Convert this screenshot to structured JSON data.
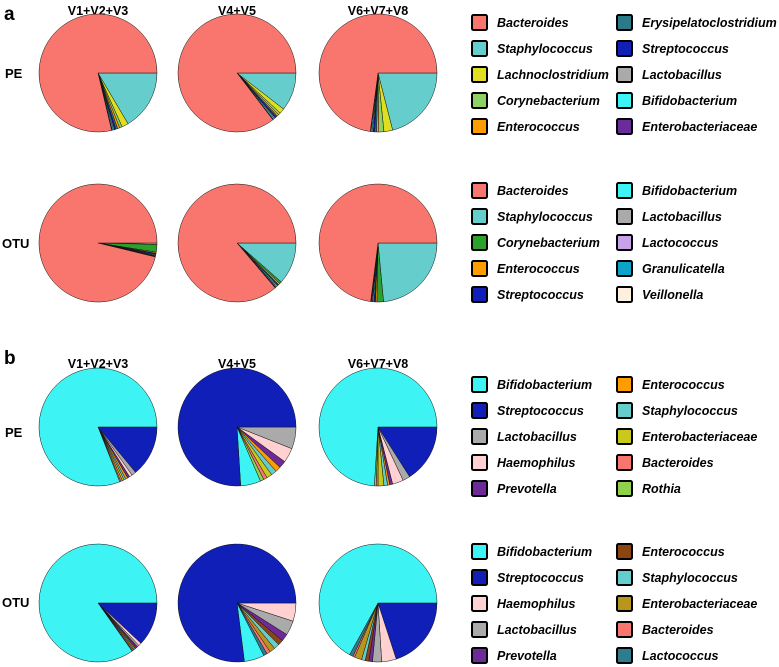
{
  "colors": {
    "Bacteroides": "#f8766d",
    "Staphylococcus": "#66cdcd",
    "Lachnoclostridium": "#dede22",
    "Corynebacterium": "#2ca02c",
    "Corynebacterium_light": "#8fd164",
    "Enterococcus": "#ff9d00",
    "Enterococcus_dark": "#8b4513",
    "Erysipelatoclostridium": "#2b7a8a",
    "Streptococcus": "#0f1fb8",
    "Lactobacillus": "#aaaaaa",
    "Bifidobacterium": "#3ef3f3",
    "Enterobacteriaceae": "#6a2c9a",
    "Enterobacteriaceae_b": "#c9c91c",
    "Enterobacteriaceae_b2": "#b8961c",
    "Lactococcus": "#c8a2e8",
    "Lactococcus_b": "#2e7d8f",
    "Granulicatella": "#0ba4c8",
    "Veillonella": "#fdf0e0",
    "Haemophilus": "#ffd1d1",
    "Prevotella": "#6f2a99",
    "Rothia": "#8fd14a",
    "bifido_light": "#9ef5f5"
  },
  "chart_data": [
    {
      "panel": "a",
      "type": "pie",
      "columns": [
        "V1+V2+V3",
        "V4+V5",
        "V6+V7+V8"
      ],
      "rows": [
        {
          "label": "PE",
          "legend": [
            "Bacteroides",
            "Staphylococcus",
            "Lachnoclostridium",
            "Corynebacterium",
            "Enterococcus",
            "Erysipelatoclostridium",
            "Streptococcus",
            "Lactobacillus",
            "Bifidobacterium",
            "Enterobacteriaceae"
          ],
          "legend_colors": [
            "#f8766d",
            "#66cdcd",
            "#dede22",
            "#8fd164",
            "#ff9d00",
            "#2b7a8a",
            "#0f1fb8",
            "#aaaaaa",
            "#3ef3f3",
            "#6a2c9a"
          ],
          "pies": [
            {
              "column": "V1+V2+V3",
              "slices": [
                {
                  "name": "Staphylococcus",
                  "value": 16.5
                },
                {
                  "name": "Lachnoclostridium",
                  "value": 1.8
                },
                {
                  "name": "Corynebacterium",
                  "value": 0.7
                },
                {
                  "name": "Enterococcus",
                  "value": 0.6
                },
                {
                  "name": "Erysipelatoclostridium",
                  "value": 0.5
                },
                {
                  "name": "Streptococcus",
                  "value": 0.4
                },
                {
                  "name": "Lactobacillus",
                  "value": 0.3
                },
                {
                  "name": "Bifidobacterium",
                  "value": 0.3
                },
                {
                  "name": "Enterobacteriaceae",
                  "value": 0.2
                },
                {
                  "name": "Bacteroides",
                  "value": 78.7
                }
              ]
            },
            {
              "column": "V4+V5",
              "slices": [
                {
                  "name": "Staphylococcus",
                  "value": 10.5
                },
                {
                  "name": "Lachnoclostridium",
                  "value": 1.4
                },
                {
                  "name": "Corynebacterium",
                  "value": 0.6
                },
                {
                  "name": "Enterococcus",
                  "value": 0.5
                },
                {
                  "name": "Erysipelatoclostridium",
                  "value": 0.4
                },
                {
                  "name": "Streptococcus",
                  "value": 0.4
                },
                {
                  "name": "Lactobacillus",
                  "value": 0.3
                },
                {
                  "name": "Bifidobacterium",
                  "value": 0.3
                },
                {
                  "name": "Enterobacteriaceae",
                  "value": 0.2
                },
                {
                  "name": "Bacteroides",
                  "value": 85.4
                }
              ]
            },
            {
              "column": "V6+V7+V8",
              "slices": [
                {
                  "name": "Staphylococcus",
                  "value": 21
                },
                {
                  "name": "Lachnoclostridium",
                  "value": 2.4
                },
                {
                  "name": "Corynebacterium",
                  "value": 1.4
                },
                {
                  "name": "Enterococcus",
                  "value": 0.6
                },
                {
                  "name": "Erysipelatoclostridium",
                  "value": 0.5
                },
                {
                  "name": "Streptococcus",
                  "value": 0.4
                },
                {
                  "name": "Lactobacillus",
                  "value": 0.3
                },
                {
                  "name": "Bifidobacterium",
                  "value": 0.3
                },
                {
                  "name": "Enterobacteriaceae",
                  "value": 0.2
                },
                {
                  "name": "Bacteroides",
                  "value": 72.9
                }
              ]
            }
          ]
        },
        {
          "label": "OTU",
          "legend": [
            "Bacteroides",
            "Staphylococcus",
            "Corynebacterium",
            "Enterococcus",
            "Streptococcus",
            "Bifidobacterium",
            "Lactobacillus",
            "Lactococcus",
            "Granulicatella",
            "Veillonella"
          ],
          "legend_colors": [
            "#f8766d",
            "#66cdcd",
            "#2ca02c",
            "#ff9d00",
            "#0f1fb8",
            "#3ef3f3",
            "#aaaaaa",
            "#c8a2e8",
            "#0ba4c8",
            "#fdf0e0"
          ],
          "pies": [
            {
              "column": "V1+V2+V3",
              "slices": [
                {
                  "name": "Staphylococcus",
                  "value": 0.4
                },
                {
                  "name": "Corynebacterium",
                  "value": 2.1
                },
                {
                  "name": "Enterococcus",
                  "value": 0.3
                },
                {
                  "name": "Streptococcus",
                  "value": 0.3
                },
                {
                  "name": "Bifidobacterium",
                  "value": 0.2
                },
                {
                  "name": "Lactobacillus",
                  "value": 0.2
                },
                {
                  "name": "Lactococcus",
                  "value": 0.1
                },
                {
                  "name": "Granulicatella",
                  "value": 0.1
                },
                {
                  "name": "Veillonella",
                  "value": 0.1
                },
                {
                  "name": "Bacteroides",
                  "value": 96.2
                }
              ]
            },
            {
              "column": "V4+V5",
              "slices": [
                {
                  "name": "Staphylococcus",
                  "value": 11.5
                },
                {
                  "name": "Corynebacterium",
                  "value": 0.6
                },
                {
                  "name": "Enterococcus",
                  "value": 0.4
                },
                {
                  "name": "Streptococcus",
                  "value": 0.4
                },
                {
                  "name": "Bifidobacterium",
                  "value": 0.3
                },
                {
                  "name": "Lactobacillus",
                  "value": 0.2
                },
                {
                  "name": "Lactococcus",
                  "value": 0.2
                },
                {
                  "name": "Granulicatella",
                  "value": 0.1
                },
                {
                  "name": "Veillonella",
                  "value": 0.1
                },
                {
                  "name": "Bacteroides",
                  "value": 86.2
                }
              ]
            },
            {
              "column": "V6+V7+V8",
              "slices": [
                {
                  "name": "Staphylococcus",
                  "value": 23.5
                },
                {
                  "name": "Corynebacterium",
                  "value": 1.8
                },
                {
                  "name": "Enterococcus",
                  "value": 0.4
                },
                {
                  "name": "Streptococcus",
                  "value": 0.4
                },
                {
                  "name": "Bifidobacterium",
                  "value": 0.3
                },
                {
                  "name": "Lactobacillus",
                  "value": 0.2
                },
                {
                  "name": "Lactococcus",
                  "value": 0.2
                },
                {
                  "name": "Granulicatella",
                  "value": 0.1
                },
                {
                  "name": "Veillonella",
                  "value": 0.1
                },
                {
                  "name": "Bacteroides",
                  "value": 73
                }
              ]
            }
          ]
        }
      ]
    },
    {
      "panel": "b",
      "type": "pie",
      "columns": [
        "V1+V2+V3",
        "V4+V5",
        "V6+V7+V8"
      ],
      "rows": [
        {
          "label": "PE",
          "legend": [
            "Bifidobacterium",
            "Streptococcus",
            "Lactobacillus",
            "Haemophilus",
            "Prevotella",
            "Enterococcus",
            "Staphylococcus",
            "Enterobacteriaceae",
            "Bacteroides",
            "Rothia"
          ],
          "legend_colors": [
            "#3ef3f3",
            "#0f1fb8",
            "#aaaaaa",
            "#ffd1d1",
            "#6f2a99",
            "#ff9d00",
            "#66cdcd",
            "#c9c91c",
            "#f8766d",
            "#8fd14a"
          ],
          "pies": [
            {
              "column": "V1+V2+V3",
              "slices": [
                {
                  "name": "Streptococcus",
                  "value": 14
                },
                {
                  "name": "Lactobacillus",
                  "value": 1.2
                },
                {
                  "name": "Haemophilus",
                  "value": 0.8
                },
                {
                  "name": "Prevotella",
                  "value": 0.6
                },
                {
                  "name": "Enterococcus",
                  "value": 0.6
                },
                {
                  "name": "Staphylococcus",
                  "value": 0.5
                },
                {
                  "name": "Enterobacteriaceae",
                  "value": 0.5
                },
                {
                  "name": "Bacteroides",
                  "value": 0.5
                },
                {
                  "name": "Rothia",
                  "value": 0.3
                },
                {
                  "name": "Bifidobacterium",
                  "value": 81
                }
              ]
            },
            {
              "column": "V4+V5",
              "slices": [
                {
                  "name": "Lactobacillus",
                  "value": 6
                },
                {
                  "name": "Haemophilus",
                  "value": 4
                },
                {
                  "name": "Prevotella",
                  "value": 2
                },
                {
                  "name": "Enterococcus",
                  "value": 1.5
                },
                {
                  "name": "Staphylococcus",
                  "value": 1.5
                },
                {
                  "name": "Enterobacteriaceae",
                  "value": 1.5
                },
                {
                  "name": "Bacteroides",
                  "value": 1
                },
                {
                  "name": "Rothia",
                  "value": 1
                },
                {
                  "name": "Bifidobacterium",
                  "value": 5.5
                },
                {
                  "name": "Streptococcus",
                  "value": 76
                }
              ]
            },
            {
              "column": "V6+V7+V8",
              "slices": [
                {
                  "name": "Streptococcus",
                  "value": 16
                },
                {
                  "name": "Lactobacillus",
                  "value": 2
                },
                {
                  "name": "Haemophilus",
                  "value": 3
                },
                {
                  "name": "Prevotella",
                  "value": 0.8
                },
                {
                  "name": "Enterococcus",
                  "value": 0.6
                },
                {
                  "name": "Staphylococcus",
                  "value": 1
                },
                {
                  "name": "Enterobacteriaceae",
                  "value": 1.6
                },
                {
                  "name": "Bacteroides",
                  "value": 0.5
                },
                {
                  "name": "Rothia",
                  "value": 0.5
                },
                {
                  "name": "Bifidobacterium",
                  "value": 74
                }
              ]
            }
          ]
        },
        {
          "label": "OTU",
          "legend": [
            "Bifidobacterium",
            "Streptococcus",
            "Haemophilus",
            "Lactobacillus",
            "Prevotella",
            "Enterococcus",
            "Staphylococcus",
            "Enterobacteriaceae",
            "Bacteroides",
            "Lactococcus"
          ],
          "legend_colors": [
            "#3ef3f3",
            "#0f1fb8",
            "#ffd1d1",
            "#aaaaaa",
            "#6f2a99",
            "#8b4513",
            "#66cdcd",
            "#b8961c",
            "#f8766d",
            "#2e7d8f"
          ],
          "pies": [
            {
              "column": "V1+V2+V3",
              "slices": [
                {
                  "name": "Streptococcus",
                  "value": 12
                },
                {
                  "name": "Haemophilus",
                  "value": 0.8
                },
                {
                  "name": "Lactobacillus",
                  "value": 0.5
                },
                {
                  "name": "Prevotella",
                  "value": 0.4
                },
                {
                  "name": "Enterococcus",
                  "value": 0.4
                },
                {
                  "name": "Staphylococcus",
                  "value": 0.3
                },
                {
                  "name": "Enterobacteriaceae",
                  "value": 0.3
                },
                {
                  "name": "Bacteroides",
                  "value": 0.3
                },
                {
                  "name": "Lactococcus",
                  "value": 0.2
                },
                {
                  "name": "Bifidobacterium",
                  "value": 84.8
                }
              ]
            },
            {
              "column": "V4+V5",
              "slices": [
                {
                  "name": "Haemophilus",
                  "value": 5
                },
                {
                  "name": "Lactobacillus",
                  "value": 4
                },
                {
                  "name": "Prevotella",
                  "value": 2
                },
                {
                  "name": "Enterococcus",
                  "value": 1.5
                },
                {
                  "name": "Staphylococcus",
                  "value": 1.5
                },
                {
                  "name": "Enterobacteriaceae",
                  "value": 1.5
                },
                {
                  "name": "Bacteroides",
                  "value": 1
                },
                {
                  "name": "Lactococcus",
                  "value": 1
                },
                {
                  "name": "Bifidobacterium",
                  "value": 5.5
                },
                {
                  "name": "Streptococcus",
                  "value": 77
                }
              ]
            },
            {
              "column": "V6+V7+V8",
              "slices": [
                {
                  "name": "Streptococcus",
                  "value": 20
                },
                {
                  "name": "Haemophilus",
                  "value": 4
                },
                {
                  "name": "Lactobacillus",
                  "value": 2.5
                },
                {
                  "name": "Prevotella",
                  "value": 1
                },
                {
                  "name": "Enterococcus",
                  "value": 1
                },
                {
                  "name": "Staphylococcus",
                  "value": 1
                },
                {
                  "name": "Enterobacteriaceae",
                  "value": 2
                },
                {
                  "name": "Bacteroides",
                  "value": 0.5
                },
                {
                  "name": "Lactococcus",
                  "value": 1
                },
                {
                  "name": "Bifidobacterium",
                  "value": 67
                }
              ]
            }
          ]
        }
      ]
    }
  ]
}
